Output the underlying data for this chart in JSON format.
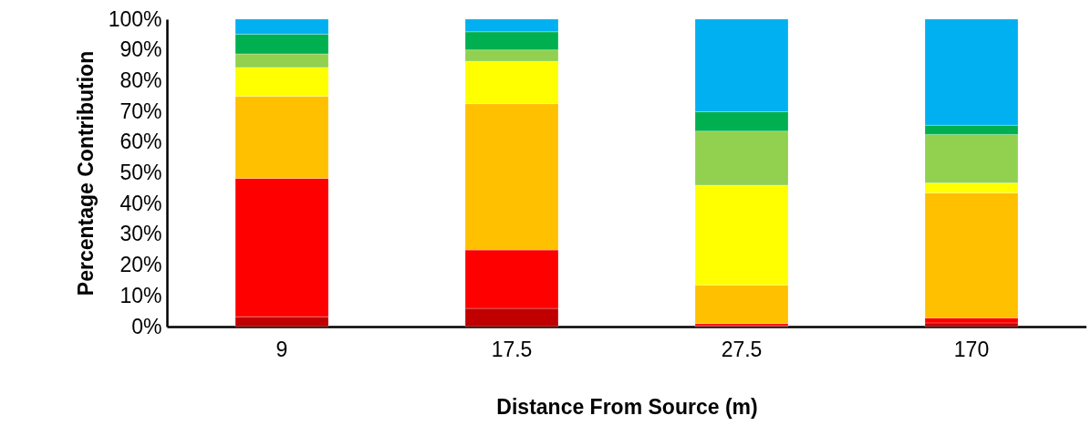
{
  "chart_data": {
    "type": "bar",
    "stacked": true,
    "xlabel": "Distance From Source (m)",
    "ylabel": "Percentage Contribution",
    "categories": [
      "9",
      "17.5",
      "27.5",
      "170"
    ],
    "series": [
      {
        "color": "#c00000",
        "values": [
          3.2,
          5.9,
          0.3,
          1.2
        ]
      },
      {
        "color": "#ff0000",
        "values": [
          45.0,
          19.0,
          0.7,
          1.6
        ]
      },
      {
        "color": "#ffc000",
        "values": [
          26.7,
          47.6,
          12.5,
          40.7
        ]
      },
      {
        "color": "#ffff00",
        "values": [
          9.4,
          13.8,
          32.5,
          3.2
        ]
      },
      {
        "color": "#92d050",
        "values": [
          4.4,
          3.7,
          17.6,
          15.8
        ]
      },
      {
        "color": "#00b050",
        "values": [
          6.4,
          5.9,
          6.3,
          3.0
        ]
      },
      {
        "color": "#00b0f0",
        "values": [
          4.9,
          4.1,
          30.1,
          34.5
        ]
      }
    ],
    "ylim": [
      0,
      100
    ],
    "yticks": [
      {
        "value": 0,
        "label": "0%"
      },
      {
        "value": 10,
        "label": "10%"
      },
      {
        "value": 20,
        "label": "20%"
      },
      {
        "value": 30,
        "label": "30%"
      },
      {
        "value": 40,
        "label": "40%"
      },
      {
        "value": 50,
        "label": "50%"
      },
      {
        "value": 60,
        "label": "60%"
      },
      {
        "value": 70,
        "label": "70%"
      },
      {
        "value": 80,
        "label": "80%"
      },
      {
        "value": 90,
        "label": "90%"
      },
      {
        "value": 100,
        "label": "100%"
      }
    ],
    "grid": false
  }
}
